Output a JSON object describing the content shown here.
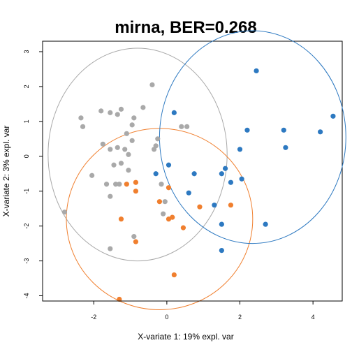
{
  "chart_data": {
    "type": "scatter",
    "title": "mirna, BER=0.268",
    "xlabel": "X-variate 1: 19% expl. var",
    "ylabel": "X-variate 2: 3% expl. var",
    "xlim": [
      -3.4,
      4.8
    ],
    "ylim": [
      -4.15,
      3.3
    ],
    "xticks": [
      -2,
      0,
      2,
      4
    ],
    "yticks": [
      -4,
      -3,
      -2,
      -1,
      0,
      1,
      2,
      3
    ],
    "grid": false,
    "legend": "none",
    "series": [
      {
        "color": "#A9A9A9",
        "ellipse": {
          "cx": -0.8,
          "cy": 0.05,
          "rx": 2.45,
          "ry": 3.05
        },
        "points": [
          [
            -0.4,
            2.05
          ],
          [
            -2.35,
            1.1
          ],
          [
            -2.3,
            0.85
          ],
          [
            -1.8,
            1.3
          ],
          [
            -1.55,
            1.25
          ],
          [
            -1.35,
            1.2
          ],
          [
            -1.25,
            1.35
          ],
          [
            -0.65,
            1.4
          ],
          [
            -0.9,
            1.1
          ],
          [
            -1.1,
            0.65
          ],
          [
            -0.95,
            0.9
          ],
          [
            -1.75,
            0.35
          ],
          [
            -1.55,
            0.2
          ],
          [
            -1.35,
            0.25
          ],
          [
            -1.15,
            0.2
          ],
          [
            -0.95,
            0.45
          ],
          [
            -0.3,
            0.3
          ],
          [
            -0.25,
            0.5
          ],
          [
            -0.35,
            0.2
          ],
          [
            -1.05,
            0.05
          ],
          [
            -1.25,
            -0.2
          ],
          [
            -1.45,
            -0.25
          ],
          [
            -1.05,
            -0.4
          ],
          [
            -2.05,
            -0.55
          ],
          [
            -1.65,
            -0.8
          ],
          [
            -1.4,
            -0.8
          ],
          [
            -1.3,
            -0.8
          ],
          [
            -0.15,
            -0.8
          ],
          [
            -1.55,
            -1.15
          ],
          [
            -0.05,
            -1.3
          ],
          [
            0.4,
            0.85
          ],
          [
            0.55,
            0.85
          ],
          [
            -2.8,
            -1.6
          ],
          [
            -0.9,
            -2.3
          ],
          [
            -1.55,
            -2.65
          ],
          [
            -0.1,
            -1.65
          ]
        ]
      },
      {
        "color": "#F07F2E",
        "ellipse": {
          "cx": -0.2,
          "cy": -1.8,
          "rx": 2.55,
          "ry": 2.6
        },
        "points": [
          [
            -1.1,
            -0.8
          ],
          [
            -0.85,
            -0.75
          ],
          [
            -0.85,
            -1.0
          ],
          [
            0.05,
            -0.9
          ],
          [
            -0.2,
            -1.3
          ],
          [
            0.9,
            -1.45
          ],
          [
            1.75,
            -1.4
          ],
          [
            0.05,
            -1.8
          ],
          [
            0.15,
            -1.75
          ],
          [
            -1.25,
            -1.8
          ],
          [
            0.45,
            -2.05
          ],
          [
            -0.85,
            -2.45
          ],
          [
            0.2,
            -3.4
          ],
          [
            -1.3,
            -4.1
          ]
        ]
      },
      {
        "color": "#2D79C1",
        "ellipse": {
          "cx": 2.35,
          "cy": 0.55,
          "rx": 2.55,
          "ry": 3.05
        },
        "points": [
          [
            2.45,
            2.45
          ],
          [
            0.2,
            1.25
          ],
          [
            4.55,
            1.15
          ],
          [
            3.2,
            0.75
          ],
          [
            2.2,
            0.75
          ],
          [
            4.2,
            0.7
          ],
          [
            2.0,
            0.2
          ],
          [
            3.25,
            0.25
          ],
          [
            0.05,
            -0.25
          ],
          [
            -0.3,
            -0.5
          ],
          [
            0.75,
            -0.5
          ],
          [
            1.6,
            -0.35
          ],
          [
            1.5,
            -0.5
          ],
          [
            2.05,
            -0.65
          ],
          [
            1.75,
            -0.75
          ],
          [
            0.6,
            -1.05
          ],
          [
            1.3,
            -1.4
          ],
          [
            1.5,
            -1.95
          ],
          [
            2.7,
            -1.95
          ],
          [
            1.5,
            -2.7
          ]
        ]
      }
    ]
  }
}
